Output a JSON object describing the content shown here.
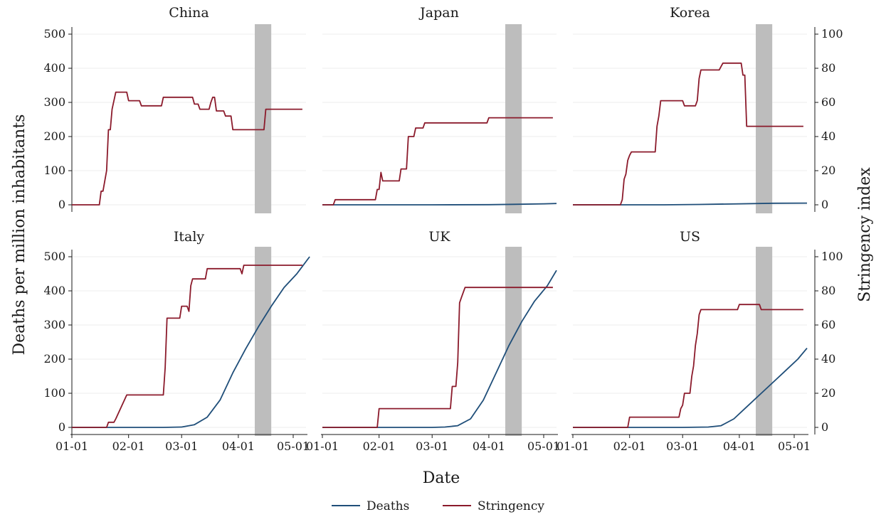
{
  "chart_data": {
    "type": "line",
    "xlabel": "Date",
    "ylabel_left": "Deaths per million inhabitants",
    "ylabel_right": "Stringency index",
    "x_ticks": [
      "01-01",
      "02-01",
      "03-01",
      "04-01",
      "05-01"
    ],
    "ylim_left": [
      0,
      500
    ],
    "ylim_right": [
      0,
      100
    ],
    "y_ticks_left": [
      0,
      100,
      200,
      300,
      400,
      500
    ],
    "y_ticks_right": [
      0,
      20,
      40,
      60,
      80,
      100
    ],
    "shaded_period": [
      "2020-04-10",
      "2020-04-19"
    ],
    "legend": {
      "placement": "bottom-center",
      "entries": [
        "Deaths",
        "Stringency"
      ]
    },
    "colors": {
      "deaths": "#1f4e79",
      "stringency": "#8b1a2b",
      "shade": "#bdbdbd",
      "grid": "#eeeeee"
    },
    "panels": [
      {
        "title": "China",
        "deaths": [],
        "stringency": [
          [
            "2020-01-01",
            0
          ],
          [
            "2020-01-16",
            0
          ],
          [
            "2020-01-17",
            8
          ],
          [
            "2020-01-18",
            8
          ],
          [
            "2020-01-20",
            20
          ],
          [
            "2020-01-21",
            44
          ],
          [
            "2020-01-22",
            44
          ],
          [
            "2020-01-23",
            56
          ],
          [
            "2020-01-25",
            66
          ],
          [
            "2020-01-31",
            66
          ],
          [
            "2020-02-01",
            61
          ],
          [
            "2020-02-07",
            61
          ],
          [
            "2020-02-08",
            58
          ],
          [
            "2020-02-19",
            58
          ],
          [
            "2020-02-20",
            63
          ],
          [
            "2020-03-07",
            63
          ],
          [
            "2020-03-08",
            59
          ],
          [
            "2020-03-10",
            59
          ],
          [
            "2020-03-11",
            56
          ],
          [
            "2020-03-16",
            56
          ],
          [
            "2020-03-17",
            60
          ],
          [
            "2020-03-18",
            63
          ],
          [
            "2020-03-19",
            63
          ],
          [
            "2020-03-20",
            55
          ],
          [
            "2020-03-24",
            55
          ],
          [
            "2020-03-25",
            52
          ],
          [
            "2020-03-28",
            52
          ],
          [
            "2020-03-29",
            44
          ],
          [
            "2020-04-15",
            44
          ],
          [
            "2020-04-16",
            56
          ],
          [
            "2020-05-06",
            56
          ]
        ]
      },
      {
        "title": "Japan",
        "deaths": [
          [
            "2020-01-01",
            0
          ],
          [
            "2020-03-01",
            0
          ],
          [
            "2020-04-01",
            0.5
          ],
          [
            "2020-04-15",
            1.5
          ],
          [
            "2020-05-01",
            3
          ],
          [
            "2020-05-08",
            4
          ]
        ],
        "stringency": [
          [
            "2020-01-01",
            0
          ],
          [
            "2020-01-07",
            0
          ],
          [
            "2020-01-08",
            3
          ],
          [
            "2020-01-30",
            3
          ],
          [
            "2020-01-31",
            9
          ],
          [
            "2020-02-01",
            9
          ],
          [
            "2020-02-02",
            19
          ],
          [
            "2020-02-03",
            14
          ],
          [
            "2020-02-12",
            14
          ],
          [
            "2020-02-13",
            21
          ],
          [
            "2020-02-16",
            21
          ],
          [
            "2020-02-17",
            40
          ],
          [
            "2020-02-20",
            40
          ],
          [
            "2020-02-21",
            45
          ],
          [
            "2020-02-25",
            45
          ],
          [
            "2020-02-26",
            48
          ],
          [
            "2020-03-31",
            48
          ],
          [
            "2020-04-01",
            51
          ],
          [
            "2020-05-06",
            51
          ]
        ]
      },
      {
        "title": "Korea",
        "deaths": [
          [
            "2020-01-01",
            0
          ],
          [
            "2020-02-20",
            0
          ],
          [
            "2020-03-10",
            1
          ],
          [
            "2020-04-01",
            3
          ],
          [
            "2020-04-20",
            4.5
          ],
          [
            "2020-05-08",
            5
          ]
        ],
        "stringency": [
          [
            "2020-01-01",
            0
          ],
          [
            "2020-01-27",
            0
          ],
          [
            "2020-01-28",
            3
          ],
          [
            "2020-01-29",
            15
          ],
          [
            "2020-01-30",
            18
          ],
          [
            "2020-01-31",
            26
          ],
          [
            "2020-02-01",
            29
          ],
          [
            "2020-02-02",
            31
          ],
          [
            "2020-02-15",
            31
          ],
          [
            "2020-02-16",
            46
          ],
          [
            "2020-02-17",
            52
          ],
          [
            "2020-02-18",
            61
          ],
          [
            "2020-03-01",
            61
          ],
          [
            "2020-03-02",
            58
          ],
          [
            "2020-03-08",
            58
          ],
          [
            "2020-03-09",
            61
          ],
          [
            "2020-03-10",
            74
          ],
          [
            "2020-03-11",
            79
          ],
          [
            "2020-03-21",
            79
          ],
          [
            "2020-03-22",
            81
          ],
          [
            "2020-03-23",
            83
          ],
          [
            "2020-04-02",
            83
          ],
          [
            "2020-04-03",
            76
          ],
          [
            "2020-04-04",
            76
          ],
          [
            "2020-04-05",
            46
          ],
          [
            "2020-05-06",
            46
          ]
        ]
      },
      {
        "title": "Italy",
        "deaths": [
          [
            "2020-01-01",
            0
          ],
          [
            "2020-02-20",
            0
          ],
          [
            "2020-03-01",
            1
          ],
          [
            "2020-03-08",
            8
          ],
          [
            "2020-03-15",
            30
          ],
          [
            "2020-03-22",
            80
          ],
          [
            "2020-03-29",
            160
          ],
          [
            "2020-04-05",
            230
          ],
          [
            "2020-04-12",
            295
          ],
          [
            "2020-04-19",
            355
          ],
          [
            "2020-04-26",
            410
          ],
          [
            "2020-05-03",
            450
          ],
          [
            "2020-05-10",
            500
          ]
        ],
        "stringency": [
          [
            "2020-01-01",
            0
          ],
          [
            "2020-01-20",
            0
          ],
          [
            "2020-01-21",
            3
          ],
          [
            "2020-01-24",
            3
          ],
          [
            "2020-01-25",
            5
          ],
          [
            "2020-01-31",
            19
          ],
          [
            "2020-02-20",
            19
          ],
          [
            "2020-02-21",
            35
          ],
          [
            "2020-02-22",
            64
          ],
          [
            "2020-02-29",
            64
          ],
          [
            "2020-03-01",
            71
          ],
          [
            "2020-03-04",
            71
          ],
          [
            "2020-03-05",
            68
          ],
          [
            "2020-03-06",
            83
          ],
          [
            "2020-03-07",
            87
          ],
          [
            "2020-03-14",
            87
          ],
          [
            "2020-03-15",
            93
          ],
          [
            "2020-04-02",
            93
          ],
          [
            "2020-04-03",
            90
          ],
          [
            "2020-04-04",
            95
          ],
          [
            "2020-05-06",
            95
          ]
        ]
      },
      {
        "title": "UK",
        "deaths": [
          [
            "2020-01-01",
            0
          ],
          [
            "2020-03-01",
            0
          ],
          [
            "2020-03-08",
            1
          ],
          [
            "2020-03-15",
            5
          ],
          [
            "2020-03-22",
            25
          ],
          [
            "2020-03-29",
            80
          ],
          [
            "2020-04-05",
            160
          ],
          [
            "2020-04-12",
            240
          ],
          [
            "2020-04-19",
            310
          ],
          [
            "2020-04-26",
            370
          ],
          [
            "2020-05-03",
            415
          ],
          [
            "2020-05-08",
            460
          ]
        ],
        "stringency": [
          [
            "2020-01-01",
            0
          ],
          [
            "2020-01-31",
            0
          ],
          [
            "2020-02-01",
            11
          ],
          [
            "2020-03-11",
            11
          ],
          [
            "2020-03-12",
            24
          ],
          [
            "2020-03-14",
            24
          ],
          [
            "2020-03-15",
            38
          ],
          [
            "2020-03-16",
            73
          ],
          [
            "2020-03-17",
            76
          ],
          [
            "2020-03-19",
            82
          ],
          [
            "2020-05-06",
            82
          ]
        ]
      },
      {
        "title": "US",
        "deaths": [
          [
            "2020-01-01",
            0
          ],
          [
            "2020-03-01",
            0
          ],
          [
            "2020-03-15",
            1
          ],
          [
            "2020-03-22",
            5
          ],
          [
            "2020-03-29",
            25
          ],
          [
            "2020-04-05",
            60
          ],
          [
            "2020-04-12",
            95
          ],
          [
            "2020-04-19",
            130
          ],
          [
            "2020-04-26",
            165
          ],
          [
            "2020-05-03",
            200
          ],
          [
            "2020-05-08",
            232
          ]
        ],
        "stringency": [
          [
            "2020-01-01",
            0
          ],
          [
            "2020-01-31",
            0
          ],
          [
            "2020-02-01",
            6
          ],
          [
            "2020-02-28",
            6
          ],
          [
            "2020-02-29",
            11
          ],
          [
            "2020-03-01",
            13
          ],
          [
            "2020-03-02",
            20
          ],
          [
            "2020-03-05",
            20
          ],
          [
            "2020-03-06",
            30
          ],
          [
            "2020-03-07",
            36
          ],
          [
            "2020-03-08",
            48
          ],
          [
            "2020-03-09",
            55
          ],
          [
            "2020-03-10",
            66
          ],
          [
            "2020-03-11",
            69
          ],
          [
            "2020-03-31",
            69
          ],
          [
            "2020-04-01",
            72
          ],
          [
            "2020-04-12",
            72
          ],
          [
            "2020-04-13",
            69
          ],
          [
            "2020-05-06",
            69
          ]
        ]
      }
    ]
  }
}
